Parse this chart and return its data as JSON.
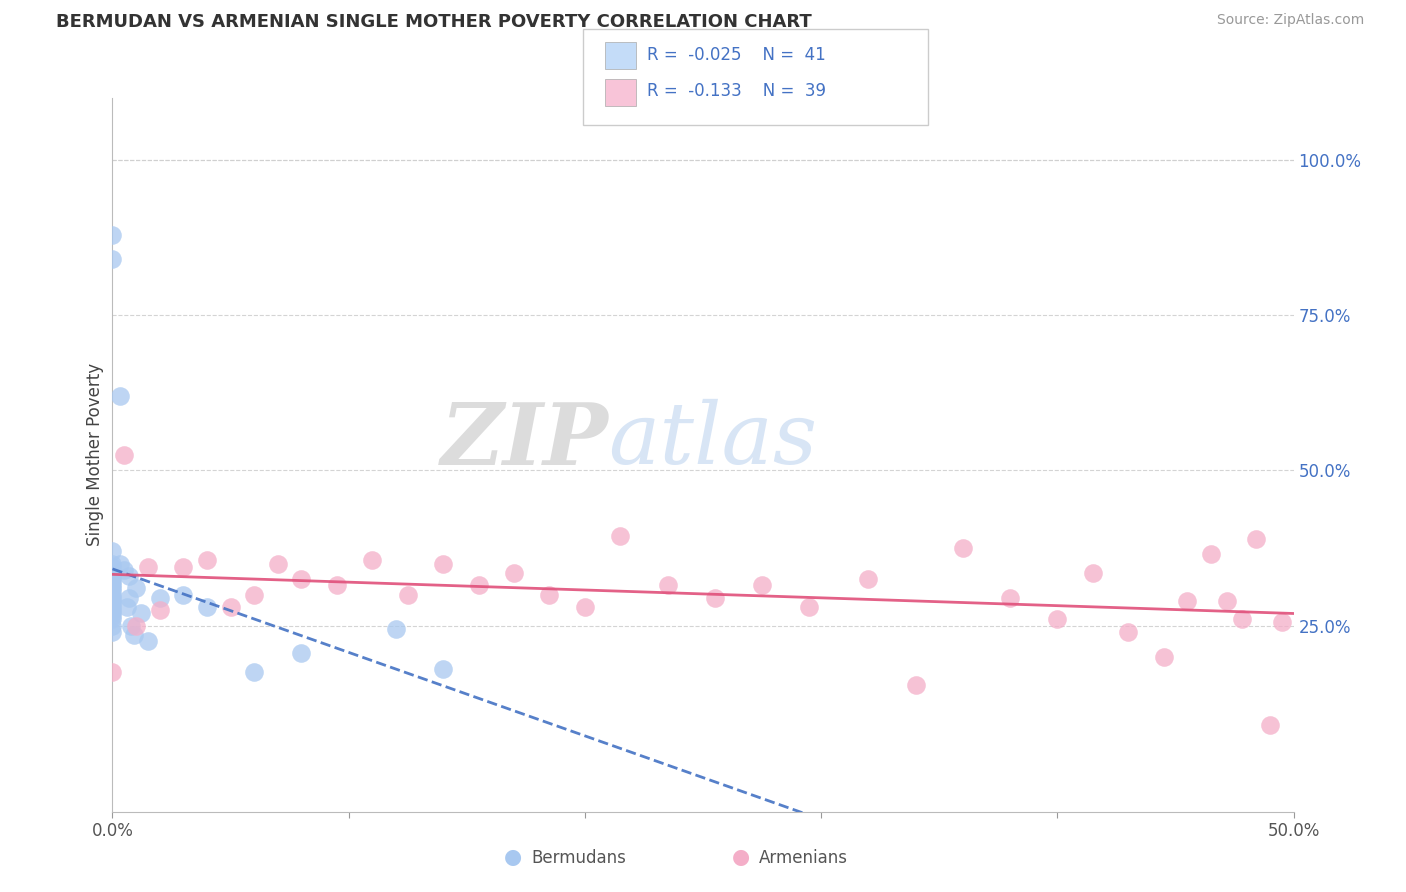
{
  "title": "BERMUDAN VS ARMENIAN SINGLE MOTHER POVERTY CORRELATION CHART",
  "source": "Source: ZipAtlas.com",
  "ylabel_label": "Single Mother Poverty",
  "xlim": [
    0.0,
    0.5
  ],
  "ylim": [
    -0.05,
    1.1
  ],
  "plot_ylim": [
    0.0,
    1.0
  ],
  "xtick_positions": [
    0.0,
    0.1,
    0.2,
    0.3,
    0.4,
    0.5
  ],
  "xtick_labels": [
    "0.0%",
    "",
    "",
    "",
    "",
    "50.0%"
  ],
  "ytick_right_positions": [
    0.25,
    0.5,
    0.75,
    1.0
  ],
  "ytick_right_labels": [
    "25.0%",
    "50.0%",
    "75.0%",
    "100.0%"
  ],
  "bermudan_R": -0.025,
  "bermudan_N": 41,
  "armenian_R": -0.133,
  "armenian_N": 39,
  "bermudan_scatter_color": "#a8c8f0",
  "armenian_scatter_color": "#f4aec8",
  "bermudan_line_color": "#4472c4",
  "armenian_line_color": "#e0507a",
  "bermudan_legend_color": "#c4dcf8",
  "armenian_legend_color": "#f8c4d8",
  "text_blue": "#4472c4",
  "watermark_zip_color": "#c8c8c8",
  "watermark_atlas_color": "#b8d4f0",
  "grid_color": "#d0d0d0",
  "bermudan_x": [
    0.0,
    0.0,
    0.0,
    0.0,
    0.0,
    0.0,
    0.0,
    0.0,
    0.0,
    0.0,
    0.0,
    0.0,
    0.0,
    0.0,
    0.0,
    0.0,
    0.0,
    0.0,
    0.0,
    0.0,
    0.0,
    0.0,
    0.0,
    0.003,
    0.003,
    0.005,
    0.006,
    0.007,
    0.007,
    0.008,
    0.009,
    0.01,
    0.012,
    0.015,
    0.02,
    0.03,
    0.04,
    0.06,
    0.08,
    0.12,
    0.14
  ],
  "bermudan_y": [
    0.88,
    0.84,
    0.37,
    0.35,
    0.345,
    0.335,
    0.33,
    0.325,
    0.32,
    0.315,
    0.31,
    0.305,
    0.3,
    0.295,
    0.29,
    0.285,
    0.28,
    0.275,
    0.27,
    0.265,
    0.26,
    0.25,
    0.24,
    0.62,
    0.35,
    0.34,
    0.28,
    0.33,
    0.295,
    0.25,
    0.235,
    0.31,
    0.27,
    0.225,
    0.295,
    0.3,
    0.28,
    0.175,
    0.205,
    0.245,
    0.18
  ],
  "armenian_x": [
    0.0,
    0.005,
    0.01,
    0.015,
    0.02,
    0.03,
    0.04,
    0.05,
    0.06,
    0.07,
    0.08,
    0.095,
    0.11,
    0.125,
    0.14,
    0.155,
    0.17,
    0.185,
    0.2,
    0.215,
    0.235,
    0.255,
    0.275,
    0.295,
    0.32,
    0.34,
    0.36,
    0.38,
    0.4,
    0.415,
    0.43,
    0.445,
    0.455,
    0.465,
    0.472,
    0.478,
    0.484,
    0.49,
    0.495
  ],
  "armenian_y": [
    0.175,
    0.525,
    0.25,
    0.345,
    0.275,
    0.345,
    0.355,
    0.28,
    0.3,
    0.35,
    0.325,
    0.315,
    0.355,
    0.3,
    0.35,
    0.315,
    0.335,
    0.3,
    0.28,
    0.395,
    0.315,
    0.295,
    0.315,
    0.28,
    0.325,
    0.155,
    0.375,
    0.295,
    0.26,
    0.335,
    0.24,
    0.2,
    0.29,
    0.365,
    0.29,
    0.26,
    0.39,
    0.09,
    0.255
  ]
}
